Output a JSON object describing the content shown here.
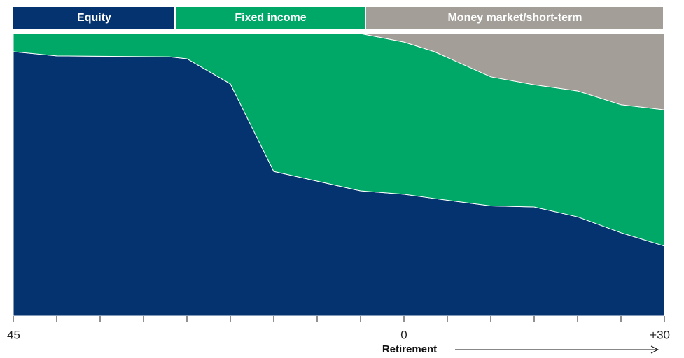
{
  "chart_data": {
    "type": "stacked-area",
    "x": [
      -45,
      -40,
      -27,
      -25,
      -20,
      -15,
      -5,
      0,
      3.5,
      10,
      15,
      20,
      25,
      30
    ],
    "series": [
      {
        "name": "Equity",
        "color": "#04336f",
        "values": [
          93.6,
          92.1,
          91.8,
          91.1,
          82.2,
          51.2,
          44.3,
          43.1,
          41.6,
          39.0,
          38.6,
          35.1,
          29.5,
          24.8
        ]
      },
      {
        "name": "Fixed income",
        "color": "#00a868",
        "values": [
          6.4,
          7.9,
          8.2,
          8.9,
          17.8,
          48.8,
          55.7,
          53.9,
          52.0,
          45.7,
          43.3,
          44.6,
          45.3,
          48.2
        ]
      },
      {
        "name": "Money market/short-term",
        "color": "#a39e97",
        "values": [
          0,
          0,
          0,
          0,
          0,
          0,
          0,
          3.0,
          6.4,
          15.3,
          18.1,
          20.3,
          25.2,
          27.0
        ]
      }
    ],
    "xlim": [
      -45,
      30
    ],
    "ylim": [
      0,
      100
    ],
    "xticks": [
      {
        "value": -45,
        "label": "45"
      },
      0,
      {
        "value": 30,
        "label": "+30"
      }
    ],
    "xminorticks": [
      -40,
      -35,
      -30,
      -25,
      -20,
      -15,
      -10,
      -5,
      5,
      10,
      15,
      20,
      25
    ],
    "xlabel": "Retirement",
    "legend": "top"
  }
}
